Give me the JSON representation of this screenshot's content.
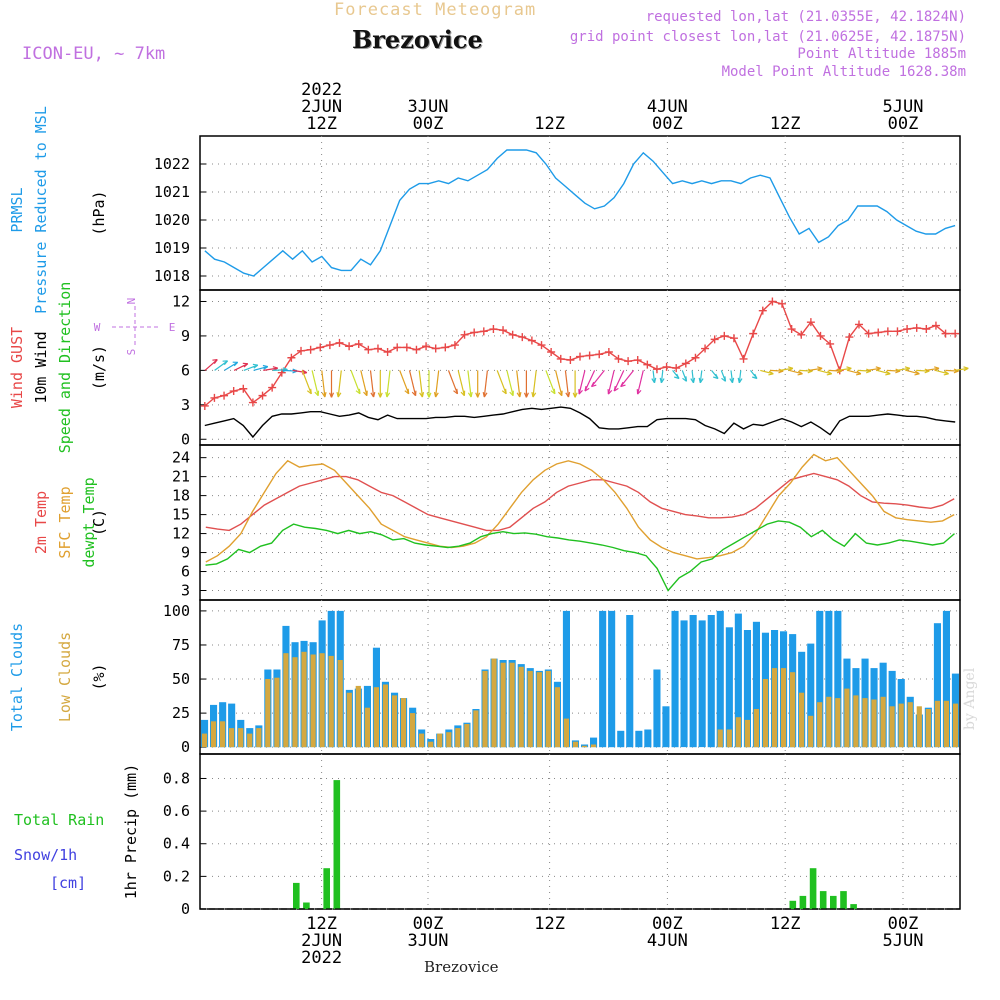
{
  "header": {
    "forecast_title": "Forecast Meteogram",
    "station": "Brezovice",
    "model": "ICON-EU, ~ 7km",
    "requested": "requested lon,lat (21.0355E, 42.1824N)",
    "grid_point": "grid point closest lon,lat (21.0625E, 42.1875N)",
    "point_alt": "Point Altitude 1885m",
    "model_alt": "Model Point Altitude 1628.38m",
    "credit": "by Angel",
    "footer_station": "Brezovice"
  },
  "colors": {
    "pressure": "#1e9be8",
    "gust": "#e84848",
    "wind": "#000000",
    "t2m": "#e05050",
    "sfc": "#e0a030",
    "dew": "#20c820",
    "total_clouds": "#1e9be8",
    "low_clouds": "#d4a840",
    "rain": "#20c020",
    "snow": "#4040e0",
    "model_text": "#c070e0",
    "title_text": "#e8c890",
    "compass": "#c070e0"
  },
  "time_axis": {
    "top": [
      {
        "lines": [
          "2022",
          "2JUN",
          "12Z"
        ],
        "t": 0.16
      },
      {
        "lines": [
          "3JUN",
          "00Z"
        ],
        "t": 0.3
      },
      {
        "lines": [
          "12Z"
        ],
        "t": 0.46
      },
      {
        "lines": [
          "4JUN",
          "00Z"
        ],
        "t": 0.615
      },
      {
        "lines": [
          "12Z"
        ],
        "t": 0.77
      },
      {
        "lines": [
          "5JUN",
          "00Z"
        ],
        "t": 0.925
      }
    ],
    "bottom": [
      {
        "lines": [
          "12Z",
          "2JUN",
          "2022"
        ],
        "t": 0.16
      },
      {
        "lines": [
          "00Z",
          "3JUN"
        ],
        "t": 0.3
      },
      {
        "lines": [
          "12Z"
        ],
        "t": 0.46
      },
      {
        "lines": [
          "00Z",
          "4JUN"
        ],
        "t": 0.615
      },
      {
        "lines": [
          "12Z"
        ],
        "t": 0.77
      },
      {
        "lines": [
          "00Z",
          "5JUN"
        ],
        "t": 0.925
      }
    ],
    "grid": [
      0.16,
      0.3,
      0.46,
      0.615,
      0.77,
      0.925
    ]
  },
  "chart_data": [
    {
      "id": "pressure",
      "type": "line",
      "title": "PRMSL Pressure Reduced to MSL",
      "label_lines": [
        "PRMSL",
        "Pressure Reduced to MSL"
      ],
      "unit": "(hPa)",
      "ylim": [
        1017.5,
        1023.0
      ],
      "yticks": [
        1018,
        1019,
        1020,
        1021,
        1022
      ],
      "series": [
        {
          "name": "PRMSL",
          "color": "#1e9be8",
          "values": [
            1018.9,
            1018.6,
            1018.5,
            1018.3,
            1018.1,
            1018.0,
            1018.3,
            1018.6,
            1018.9,
            1018.6,
            1018.9,
            1018.5,
            1018.7,
            1018.3,
            1018.2,
            1018.2,
            1018.6,
            1018.4,
            1018.9,
            1019.8,
            1020.7,
            1021.1,
            1021.3,
            1021.3,
            1021.4,
            1021.3,
            1021.5,
            1021.4,
            1021.6,
            1021.8,
            1022.2,
            1022.5,
            1022.5,
            1022.5,
            1022.4,
            1022.0,
            1021.5,
            1021.2,
            1020.9,
            1020.6,
            1020.4,
            1020.5,
            1020.8,
            1021.3,
            1022.0,
            1022.4,
            1022.1,
            1021.7,
            1021.3,
            1021.4,
            1021.3,
            1021.4,
            1021.3,
            1021.4,
            1021.4,
            1021.3,
            1021.5,
            1021.6,
            1021.5,
            1020.8,
            1020.1,
            1019.5,
            1019.7,
            1019.2,
            1019.4,
            1019.8,
            1020.0,
            1020.5,
            1020.5,
            1020.5,
            1020.3,
            1020.0,
            1019.8,
            1019.6,
            1019.5,
            1019.5,
            1019.7,
            1019.8
          ]
        }
      ]
    },
    {
      "id": "wind",
      "type": "line",
      "title": "Wind GUST / 10m Wind Speed and Direction",
      "label_lines": [
        {
          "text": "Wind GUST",
          "color": "#e84848"
        },
        {
          "text": "10m Wind",
          "color": "#000000"
        },
        {
          "text": "Speed and Direction",
          "color": "#20c020"
        }
      ],
      "unit": "(m/s)",
      "ylim": [
        -0.5,
        13.0
      ],
      "yticks": [
        0,
        3,
        6,
        9,
        12
      ],
      "compass": {
        "n": "N",
        "s": "S",
        "w": "W",
        "e": "E"
      },
      "series": [
        {
          "name": "Wind GUST",
          "color": "#e84848",
          "marker": "+",
          "values": [
            2.9,
            3.6,
            3.8,
            4.2,
            4.4,
            3.2,
            3.8,
            4.5,
            5.8,
            7.1,
            7.7,
            7.8,
            8.0,
            8.2,
            8.4,
            8.1,
            8.3,
            7.8,
            7.9,
            7.6,
            8.0,
            8.0,
            7.8,
            8.1,
            7.9,
            8.0,
            8.2,
            9.1,
            9.3,
            9.4,
            9.6,
            9.5,
            9.1,
            8.9,
            8.6,
            8.2,
            7.6,
            7.0,
            6.9,
            7.2,
            7.3,
            7.4,
            7.6,
            7.0,
            6.8,
            6.9,
            6.5,
            6.1,
            6.3,
            6.2,
            6.6,
            7.1,
            7.9,
            8.7,
            9.0,
            8.8,
            7.0,
            9.2,
            11.2,
            12.0,
            11.8,
            9.6,
            9.1,
            10.2,
            9.0,
            8.3,
            6.0,
            8.9,
            10.0,
            9.2,
            9.3,
            9.4,
            9.4,
            9.6,
            9.7,
            9.6,
            9.9,
            9.2,
            9.2
          ]
        },
        {
          "name": "10m Wind",
          "color": "#000000",
          "values": [
            1.2,
            1.4,
            1.6,
            1.8,
            1.2,
            0.2,
            1.2,
            2.0,
            2.2,
            2.2,
            2.3,
            2.4,
            2.4,
            2.2,
            2.0,
            2.1,
            2.3,
            1.9,
            1.7,
            2.1,
            1.8,
            1.8,
            1.8,
            1.8,
            1.9,
            1.9,
            2.0,
            2.0,
            1.9,
            2.0,
            2.1,
            2.2,
            2.4,
            2.6,
            2.7,
            2.6,
            2.7,
            2.8,
            2.7,
            2.3,
            1.8,
            1.0,
            0.9,
            0.9,
            1.0,
            1.1,
            1.1,
            1.7,
            1.8,
            1.8,
            1.8,
            1.7,
            1.2,
            0.9,
            0.5,
            1.4,
            0.9,
            1.3,
            1.2,
            1.5,
            1.8,
            1.5,
            1.1,
            1.5,
            1.0,
            0.4,
            1.6,
            2.0,
            2.0,
            2.0,
            2.1,
            2.2,
            2.1,
            2.0,
            2.0,
            1.9,
            1.7,
            1.6,
            1.5
          ]
        }
      ]
    },
    {
      "id": "temperature",
      "type": "line",
      "title": "2m Temp / SFC Temp / dewpt Temp",
      "label_lines": [
        {
          "text": "2m Temp",
          "color": "#e84848"
        },
        {
          "text": "SFC Temp",
          "color": "#e0a030"
        },
        {
          "text": "dewpt Temp",
          "color": "#20c020"
        }
      ],
      "unit": "(C)",
      "ylim": [
        1.5,
        26.0
      ],
      "yticks": [
        3,
        6,
        9,
        12,
        15,
        18,
        21,
        24
      ],
      "series": [
        {
          "name": "2m Temp",
          "color": "#e05050",
          "values": [
            13.0,
            12.7,
            12.5,
            13.5,
            15.0,
            16.5,
            17.5,
            18.5,
            19.5,
            20.0,
            20.5,
            21.0,
            21.0,
            20.5,
            19.5,
            18.5,
            18.0,
            17.0,
            16.0,
            15.0,
            14.5,
            14.0,
            13.5,
            13.0,
            12.5,
            12.5,
            13.0,
            14.5,
            16.0,
            17.0,
            18.5,
            19.5,
            20.0,
            20.5,
            20.5,
            20.0,
            19.5,
            18.5,
            17.0,
            16.0,
            15.5,
            15.0,
            14.8,
            14.5,
            14.5,
            14.6,
            15.0,
            16.0,
            17.5,
            19.0,
            20.5,
            21.0,
            21.5,
            21.0,
            20.5,
            19.5,
            18.0,
            17.0,
            16.8,
            16.7,
            16.5,
            16.2,
            16.0,
            16.5,
            17.5
          ]
        },
        {
          "name": "SFC Temp",
          "color": "#e0a030",
          "values": [
            7.5,
            8.5,
            10.0,
            12.0,
            15.5,
            18.5,
            21.5,
            23.5,
            22.5,
            22.8,
            23.0,
            22.0,
            20.0,
            18.0,
            16.0,
            13.5,
            12.5,
            11.5,
            11.0,
            10.5,
            10.0,
            9.8,
            10.0,
            10.5,
            11.5,
            13.5,
            16.0,
            18.5,
            20.5,
            22.0,
            23.0,
            23.5,
            23.0,
            22.0,
            20.5,
            18.5,
            16.0,
            13.0,
            11.0,
            9.8,
            9.0,
            8.5,
            8.0,
            8.2,
            8.5,
            9.0,
            10.0,
            12.0,
            15.0,
            18.0,
            20.0,
            22.5,
            24.5,
            23.5,
            24.0,
            22.0,
            20.0,
            18.0,
            15.5,
            14.5,
            14.2,
            14.0,
            13.8,
            14.0,
            15.0
          ]
        },
        {
          "name": "dewpt Temp",
          "color": "#20c020",
          "values": [
            7.0,
            7.2,
            8.0,
            9.5,
            9.0,
            10.0,
            10.5,
            12.5,
            13.5,
            13.0,
            12.8,
            12.5,
            12.0,
            12.5,
            12.0,
            12.3,
            11.8,
            11.0,
            11.2,
            10.5,
            10.2,
            10.0,
            9.8,
            10.0,
            10.5,
            11.5,
            12.0,
            12.3,
            12.0,
            12.1,
            11.9,
            11.5,
            11.3,
            11.0,
            10.8,
            10.5,
            10.2,
            9.8,
            9.3,
            9.0,
            8.5,
            6.5,
            3.0,
            5.0,
            6.0,
            7.5,
            8.0,
            9.5,
            10.5,
            11.5,
            12.5,
            13.5,
            14.0,
            13.8,
            13.0,
            11.5,
            12.5,
            11.0,
            10.0,
            12.0,
            10.5,
            10.2,
            10.5,
            11.0,
            10.8,
            10.5,
            10.2,
            10.5,
            12.0
          ]
        }
      ]
    },
    {
      "id": "clouds",
      "type": "bar",
      "title": "Total Clouds / Low Clouds",
      "label_lines": [
        {
          "text": "Total Clouds",
          "color": "#1e9be8"
        },
        {
          "text": "Low Clouds",
          "color": "#d4a840"
        }
      ],
      "unit": "(%)",
      "ylim": [
        -5,
        108
      ],
      "yticks": [
        0,
        25,
        50,
        75,
        100
      ],
      "series": [
        {
          "name": "Total Clouds",
          "color": "#1e9be8",
          "values": [
            20,
            31,
            33,
            32,
            20,
            14,
            16,
            57,
            57,
            89,
            77,
            78,
            77,
            93,
            100,
            100,
            42,
            43,
            45,
            73,
            48,
            40,
            36,
            29,
            13,
            6,
            10,
            13,
            16,
            18,
            28,
            57,
            65,
            64,
            64,
            61,
            58,
            56,
            57,
            48,
            100,
            5,
            2,
            7,
            100,
            100,
            12,
            97,
            12,
            13,
            57,
            30,
            100,
            93,
            97,
            93,
            97,
            100,
            88,
            98,
            86,
            92,
            84,
            86,
            85,
            83,
            70,
            76,
            100,
            100,
            100,
            65,
            58,
            65,
            58,
            62,
            56,
            50,
            37,
            24,
            29,
            91,
            100,
            54
          ]
        },
        {
          "name": "Low Clouds",
          "color": "#d4a840",
          "values": [
            10,
            19,
            19,
            14,
            14,
            10,
            14,
            50,
            51,
            69,
            66,
            70,
            68,
            69,
            67,
            64,
            40,
            45,
            29,
            44,
            46,
            38,
            36,
            25,
            10,
            4,
            10,
            11,
            14,
            17,
            27,
            56,
            65,
            62,
            62,
            59,
            56,
            55,
            56,
            44,
            21,
            4,
            1,
            2,
            0,
            0,
            0,
            0,
            0,
            0,
            0,
            0,
            0,
            0,
            0,
            0,
            0,
            13,
            13,
            22,
            20,
            28,
            50,
            58,
            58,
            55,
            40,
            23,
            33,
            37,
            36,
            43,
            38,
            36,
            35,
            37,
            30,
            32,
            33,
            30,
            28,
            34,
            34,
            32
          ]
        }
      ]
    },
    {
      "id": "precip",
      "type": "bar",
      "title": "Total Rain / Snow/1h",
      "label_lines": [
        {
          "text": "Total  Rain",
          "color": "#20c020"
        },
        {
          "text": "Snow/1h",
          "color": "#4040e0"
        },
        {
          "text": "[cm]",
          "color": "#4040e0"
        }
      ],
      "unit": "1hr Precip (mm)",
      "ylim": [
        0,
        0.95
      ],
      "yticks": [
        0,
        0.2,
        0.4,
        0.6,
        0.8
      ],
      "series": [
        {
          "name": "Total Rain",
          "color": "#20c020",
          "values": [
            0,
            0,
            0,
            0,
            0,
            0,
            0,
            0,
            0,
            0.16,
            0.04,
            0,
            0.25,
            0.79,
            0,
            0,
            0,
            0,
            0,
            0,
            0,
            0,
            0,
            0,
            0,
            0,
            0,
            0,
            0,
            0,
            0,
            0,
            0,
            0,
            0,
            0,
            0,
            0,
            0,
            0,
            0,
            0,
            0,
            0,
            0,
            0,
            0,
            0,
            0,
            0,
            0,
            0,
            0,
            0,
            0,
            0,
            0,
            0,
            0.05,
            0.08,
            0.25,
            0.11,
            0.08,
            0.11,
            0.03,
            0,
            0,
            0,
            0,
            0,
            0,
            0,
            0,
            0,
            0
          ]
        }
      ]
    }
  ]
}
